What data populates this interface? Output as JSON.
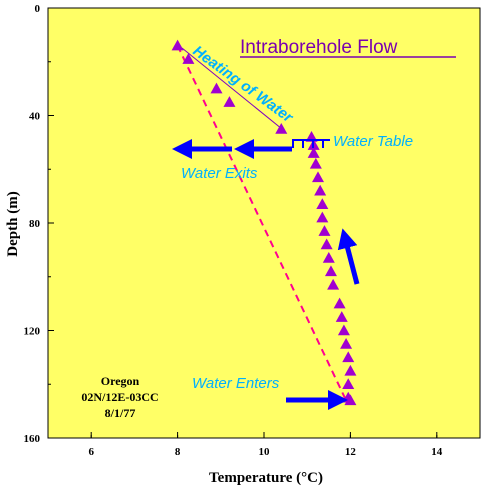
{
  "chart_data": {
    "type": "scatter",
    "title": "Intraborehole Flow",
    "xlabel": "Temperature (°C)",
    "ylabel": "Depth (m)",
    "xlim": [
      5,
      15
    ],
    "ylim": [
      0,
      160
    ],
    "y_inverted": true,
    "x_ticks": [
      "6",
      "8",
      "10",
      "12",
      "14"
    ],
    "y_ticks": [
      "0",
      "40",
      "80",
      "120",
      "160"
    ],
    "background_color": "#ffff66",
    "marker_color": "#a000d0",
    "dashed_color": "#ff0090",
    "series": [
      {
        "marker": "triangle",
        "x": [
          8.0,
          8.25,
          8.9,
          9.2,
          10.4,
          11.1,
          11.15,
          11.15,
          11.2,
          11.25,
          11.3,
          11.35,
          11.35,
          11.4,
          11.45,
          11.5,
          11.55,
          11.6,
          11.75,
          11.8,
          11.85,
          11.9,
          11.95,
          12.0,
          11.95,
          11.95,
          12.0
        ],
        "y": [
          14,
          19,
          30,
          35,
          45,
          48,
          51,
          54,
          58,
          63,
          68,
          73,
          78,
          83,
          88,
          93,
          98,
          103,
          110,
          115,
          120,
          125,
          130,
          135,
          140,
          145,
          146
        ]
      },
      {
        "line_style": "dashed",
        "x": [
          8.0,
          11.9
        ],
        "y": [
          14,
          146
        ]
      }
    ],
    "annotations": {
      "heating": "Heating of Water",
      "water_table": "Water Table",
      "water_exits": "Water Exits",
      "water_enters": "Water Enters",
      "site_line1": "Oregon",
      "site_line2": "02N/12E-03CC",
      "site_line3": "8/1/77"
    }
  }
}
